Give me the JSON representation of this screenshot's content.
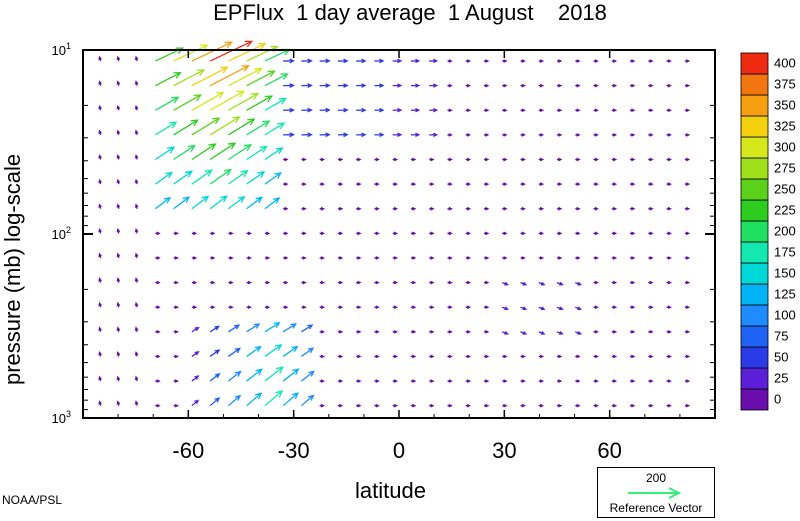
{
  "title": "EPFlux  1 day average  1 August    2018",
  "credit": "NOAA/PSL",
  "reference": {
    "magnitude": "200",
    "label": "Reference Vector",
    "color": "#33ee77"
  },
  "chart_data": {
    "type": "vector",
    "xlabel": "latitude",
    "ylabel": "pressure (mb)  log-scale",
    "xlim": [
      -90,
      90
    ],
    "ylim": [
      1000,
      10
    ],
    "y_scale": "log",
    "x_ticks": [
      -60,
      -30,
      0,
      30,
      60
    ],
    "x_tick_labels": [
      "-60",
      "-30",
      "0",
      "30",
      "60"
    ],
    "y_ticks": [
      1000,
      100,
      10
    ],
    "y_tick_labels": [
      {
        "base": "10",
        "exp": "3"
      },
      {
        "base": "10",
        "exp": "2"
      },
      {
        "base": "10",
        "exp": "1"
      }
    ],
    "colorbar": {
      "levels": [
        "0",
        "25",
        "50",
        "75",
        "100",
        "125",
        "150",
        "175",
        "200",
        "225",
        "250",
        "275",
        "300",
        "325",
        "350",
        "375",
        "400"
      ],
      "colors": [
        "#6a0dad",
        "#5a1fd6",
        "#2c3be8",
        "#1f63f5",
        "#1e8cff",
        "#00b4f5",
        "#00d8d8",
        "#12e8b0",
        "#1fe060",
        "#2ccd1f",
        "#5ad21a",
        "#a0e01a",
        "#d4e81a",
        "#f4d00f",
        "#f6a010",
        "#f2760f",
        "#ee2a10"
      ]
    },
    "vectors_description": "Strong upward/equatorward EP flux (magnitudes up to ~400) over 60S–40S in upper levels (10–70 mb); moderate upward flux (125–200) at 30S–40S near 300–1000 mb; weak flux (<50) elsewhere.",
    "regions": [
      {
        "lat_min": -68,
        "lat_max": -38,
        "p_min": 10,
        "p_max": 20,
        "mag": 400
      },
      {
        "lat_min": -68,
        "lat_max": -40,
        "p_min": 20,
        "p_max": 40,
        "mag": 280
      },
      {
        "lat_min": -68,
        "lat_max": -45,
        "p_min": 40,
        "p_max": 80,
        "mag": 170
      },
      {
        "lat_min": -60,
        "lat_max": -28,
        "p_min": 350,
        "p_max": 1000,
        "mag": 140
      }
    ]
  }
}
